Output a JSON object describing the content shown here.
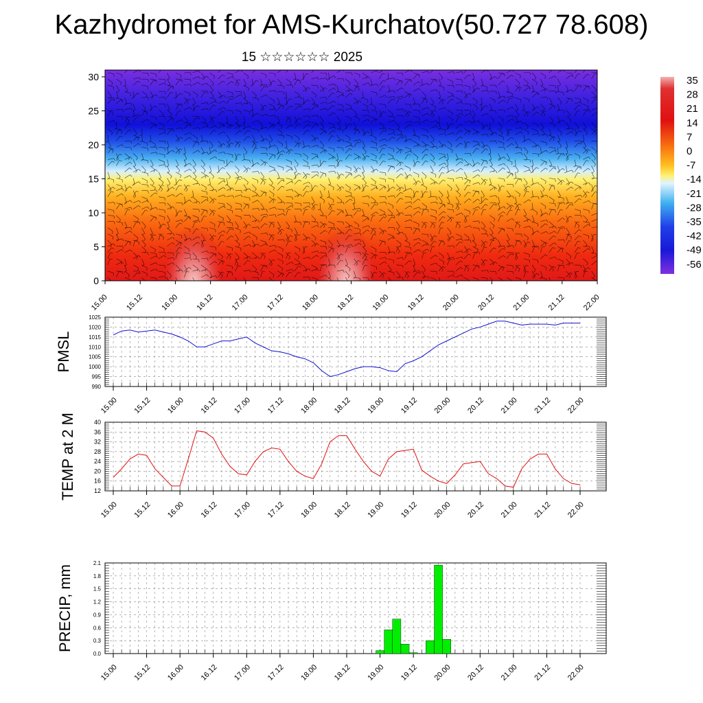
{
  "title": "Kazhydromet for AMS-Kurchatov(50.727 78.608)",
  "subtitle": "15 ☆☆☆☆☆☆ 2025",
  "colors": {
    "pmsl": "#1010d0",
    "temp": "#e01010",
    "precip": "#00ee00"
  },
  "time_labels": [
    "15.00",
    "15.12",
    "16.00",
    "16.12",
    "17.00",
    "17.12",
    "18.00",
    "18.12",
    "19.00",
    "19.12",
    "20.00",
    "20.12",
    "21.00",
    "21.12",
    "22.00"
  ],
  "chart_data": [
    {
      "type": "heatmap",
      "name_hint": "vertical-section",
      "x_labels": [
        "15.00",
        "15.12",
        "16.00",
        "16.12",
        "17.00",
        "17.12",
        "18.00",
        "18.12",
        "19.00",
        "19.12",
        "20.00",
        "20.12",
        "21.00",
        "21.12",
        "22.00"
      ],
      "ylim": [
        0,
        31
      ],
      "y_ticks": [
        0,
        5,
        10,
        15,
        20,
        25,
        30
      ],
      "colorbar_labels": [
        "35",
        "28",
        "21",
        "14",
        "7",
        "0",
        "-7",
        "-14",
        "-21",
        "-28",
        "-35",
        "-42",
        "-49",
        "-56"
      ],
      "colorbar_range": [
        -60,
        40
      ],
      "overlay": "wind barbs and streamlines"
    },
    {
      "type": "line",
      "ylabel": "PMSL",
      "ylim": [
        990,
        1025
      ],
      "y_ticks": [
        990,
        995,
        1000,
        1005,
        1010,
        1015,
        1020,
        1025
      ],
      "x_labels": [
        "15.00",
        "15.12",
        "16.00",
        "16.12",
        "17.00",
        "17.12",
        "18.00",
        "18.12",
        "19.00",
        "19.12",
        "20.00",
        "20.12",
        "21.00",
        "21.12",
        "22.00"
      ],
      "x": [
        0,
        3,
        6,
        9,
        12,
        15,
        18,
        21,
        24,
        27,
        30,
        33,
        36,
        39,
        42,
        45,
        48,
        51,
        54,
        57,
        60,
        63,
        66,
        69,
        72,
        75,
        78,
        81,
        84,
        87,
        90,
        93,
        96,
        99,
        102,
        105,
        108,
        111,
        114,
        117,
        120,
        123,
        126,
        129,
        132,
        135,
        138,
        141,
        144,
        147,
        150,
        153,
        156,
        159,
        162,
        165,
        168
      ],
      "values": [
        1016,
        1018,
        1018.5,
        1017.5,
        1018,
        1018.5,
        1017.5,
        1016.5,
        1015,
        1013,
        1010,
        1010,
        1011.5,
        1013,
        1013,
        1014,
        1015,
        1012,
        1010,
        1008,
        1007.5,
        1006.5,
        1005,
        1004,
        1002,
        998,
        995,
        996,
        997.5,
        999,
        1000,
        1000,
        999.5,
        998,
        997.5,
        1001.5,
        1003,
        1005,
        1008,
        1011,
        1013,
        1015,
        1017,
        1019,
        1020,
        1021.5,
        1023,
        1023,
        1022,
        1021,
        1021.5,
        1021.5,
        1021.5,
        1021,
        1022,
        1022,
        1022
      ]
    },
    {
      "type": "line",
      "ylabel": "TEMP at 2 M",
      "ylim": [
        12,
        40
      ],
      "y_ticks": [
        12,
        16,
        20,
        24,
        28,
        32,
        36,
        40
      ],
      "x_labels": [
        "15.00",
        "15.12",
        "16.00",
        "16.12",
        "17.00",
        "17.12",
        "18.00",
        "18.12",
        "19.00",
        "19.12",
        "20.00",
        "20.12",
        "21.00",
        "21.12",
        "22.00"
      ],
      "x": [
        0,
        3,
        6,
        9,
        12,
        15,
        18,
        21,
        24,
        27,
        30,
        33,
        36,
        39,
        42,
        45,
        48,
        51,
        54,
        57,
        60,
        63,
        66,
        69,
        72,
        75,
        78,
        81,
        84,
        87,
        90,
        93,
        96,
        99,
        102,
        105,
        108,
        111,
        114,
        117,
        120,
        123,
        126,
        129,
        132,
        135,
        138,
        141,
        144,
        147,
        150,
        153,
        156,
        159,
        162,
        165,
        168
      ],
      "values": [
        17.5,
        21,
        25,
        27,
        26.5,
        21,
        17.5,
        14,
        14,
        25,
        36.5,
        36,
        33.5,
        27,
        22,
        19,
        18.5,
        24,
        28,
        29.5,
        29,
        24,
        20,
        18,
        17,
        23,
        32,
        34.5,
        34.5,
        29,
        24,
        20,
        18,
        25,
        28,
        28.5,
        29,
        20.5,
        18,
        16,
        15,
        18.5,
        23,
        23.5,
        24,
        19,
        17,
        14,
        13.5,
        21,
        25,
        27,
        27,
        21,
        17,
        15,
        14.5
      ]
    },
    {
      "type": "bar",
      "ylabel": "PRECIP, mm",
      "ylim": [
        0,
        2.1
      ],
      "y_ticks": [
        "0.0",
        "0.3",
        "0.6",
        "0.9",
        "1.2",
        "1.5",
        "1.8",
        "2.1"
      ],
      "x_labels": [
        "15.00",
        "15.12",
        "16.00",
        "16.12",
        "17.00",
        "17.12",
        "18.00",
        "18.12",
        "19.00",
        "19.12",
        "20.00",
        "20.12",
        "21.00",
        "21.12",
        "22.00"
      ],
      "bars": [
        {
          "x": 96,
          "value": 0.07
        },
        {
          "x": 99,
          "value": 0.55
        },
        {
          "x": 102,
          "value": 0.8
        },
        {
          "x": 105,
          "value": 0.22
        },
        {
          "x": 108,
          "value": 0.02
        },
        {
          "x": 114,
          "value": 0.3
        },
        {
          "x": 117,
          "value": 2.05
        },
        {
          "x": 120,
          "value": 0.33
        }
      ]
    }
  ]
}
